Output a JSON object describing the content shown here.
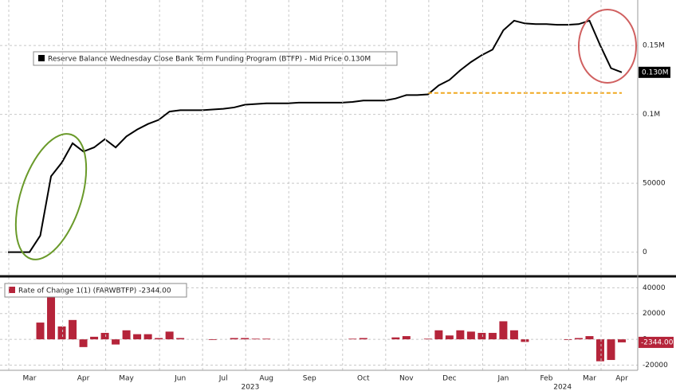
{
  "chart_data": [
    {
      "type": "line",
      "series": [
        {
          "name": "Reserve Balance Wednesday Close Bank Term Funding Program (BTFP) - Mid Price 0.130M",
          "color": "#000000",
          "values": [
            0,
            0,
            0,
            12000,
            55000,
            65000,
            79000,
            73000,
            76000,
            82000,
            76000,
            84000,
            89000,
            93000,
            96000,
            102000,
            103000,
            103000,
            103000,
            103500,
            104000,
            105000,
            107000,
            107500,
            108000,
            108000,
            108000,
            108500,
            108500,
            108500,
            108500,
            108500,
            109000,
            110000,
            110000,
            110000,
            111500,
            114000,
            114000,
            114500,
            121000,
            125000,
            132000,
            138000,
            143000,
            147000,
            161000,
            168000,
            166000,
            165500,
            165500,
            165000,
            165000,
            165500,
            168000,
            150000,
            133500,
            130500
          ],
          "last_label": "0.130M"
        }
      ],
      "reference_line": {
        "value": 115500,
        "from": 39,
        "to": 57,
        "color": "#f0a820"
      },
      "ylim": [
        -17000,
        183000
      ],
      "yticks": [
        0,
        50000,
        {
          "value": 100000,
          "label": "0.1M"
        },
        {
          "value": 150000,
          "label": "0.15M"
        }
      ],
      "grid": true
    },
    {
      "type": "bar",
      "categories": [
        null,
        null,
        "Mar",
        null,
        null,
        null,
        null,
        "Apr",
        null,
        null,
        null,
        "May",
        null,
        null,
        null,
        null,
        "Jun",
        null,
        null,
        null,
        "Jul",
        null,
        null,
        null,
        "Aug",
        null,
        null,
        null,
        "Sep",
        null,
        null,
        null,
        null,
        "Oct",
        null,
        null,
        null,
        "Nov",
        null,
        null,
        null,
        "Dec",
        null,
        null,
        null,
        null,
        "Jan",
        null,
        null,
        null,
        "Feb",
        null,
        null,
        null,
        "Mar",
        null,
        null,
        "Apr"
      ],
      "x_groups": [
        {
          "label": "2023",
          "start": 0,
          "end": 45
        },
        {
          "label": "2024",
          "start": 46,
          "end": 57
        }
      ],
      "series": [
        {
          "name": "Rate of Change 1(1) (FARWBTFP) -2344.00",
          "color": "#b5243a",
          "values": [
            0,
            0,
            0,
            13000,
            33000,
            10000,
            15000,
            -6000,
            2000,
            5000,
            -4000,
            7000,
            4000,
            4000,
            1000,
            6000,
            1000,
            0,
            0,
            -500,
            0,
            1000,
            1000,
            500,
            500,
            0,
            0,
            0,
            0,
            0,
            0,
            0,
            500,
            1000,
            0,
            0,
            1500,
            2500,
            0,
            500,
            7000,
            3000,
            7000,
            6000,
            5000,
            5000,
            14000,
            7000,
            -2000,
            0,
            0,
            0,
            -500,
            1000,
            2500,
            -17000,
            -16000,
            -2344
          ],
          "last_label": "-2344.00"
        }
      ],
      "ylim": [
        -24000,
        47000
      ],
      "yticks": [
        40000,
        20000,
        0,
        -20000
      ],
      "grid": true
    }
  ]
}
